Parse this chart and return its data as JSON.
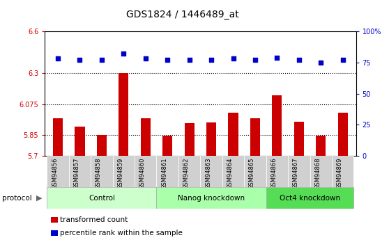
{
  "title": "GDS1824 / 1446489_at",
  "samples": [
    "GSM94856",
    "GSM94857",
    "GSM94858",
    "GSM94859",
    "GSM94860",
    "GSM94861",
    "GSM94862",
    "GSM94863",
    "GSM94864",
    "GSM94865",
    "GSM94866",
    "GSM94867",
    "GSM94868",
    "GSM94869"
  ],
  "red_values": [
    5.97,
    5.91,
    5.85,
    6.3,
    5.97,
    5.845,
    5.935,
    5.94,
    6.01,
    5.97,
    6.14,
    5.945,
    5.845,
    6.01
  ],
  "blue_values": [
    78,
    77,
    77,
    82,
    78,
    77,
    77,
    77,
    78,
    77,
    79,
    77,
    75,
    77
  ],
  "ylim_left": [
    5.7,
    6.6
  ],
  "ylim_right": [
    0,
    100
  ],
  "yticks_left": [
    5.7,
    5.85,
    6.075,
    6.3,
    6.6
  ],
  "yticks_right": [
    0,
    25,
    50,
    75,
    100
  ],
  "ytick_labels_left": [
    "5.7",
    "5.85",
    "6.075",
    "6.3",
    "6.6"
  ],
  "ytick_labels_right": [
    "0",
    "25",
    "50",
    "75",
    "100%"
  ],
  "hlines": [
    5.85,
    6.075,
    6.3
  ],
  "bar_color": "#CC0000",
  "dot_color": "#0000CC",
  "bar_width": 0.45,
  "groups": [
    {
      "label": "Control",
      "start": 0,
      "end": 5,
      "color": "#ccffcc"
    },
    {
      "label": "Nanog knockdown",
      "start": 5,
      "end": 10,
      "color": "#aaffaa"
    },
    {
      "label": "Oct4 knockdown",
      "start": 10,
      "end": 14,
      "color": "#55dd55"
    }
  ],
  "protocol_label": "protocol",
  "legend_items": [
    {
      "color": "#CC0000",
      "label": "transformed count"
    },
    {
      "color": "#0000CC",
      "label": "percentile rank within the sample"
    }
  ],
  "tick_color_left": "#CC0000",
  "tick_color_right": "#0000CC",
  "title_fontsize": 10,
  "xlabel_bg": "#d0d0d0"
}
